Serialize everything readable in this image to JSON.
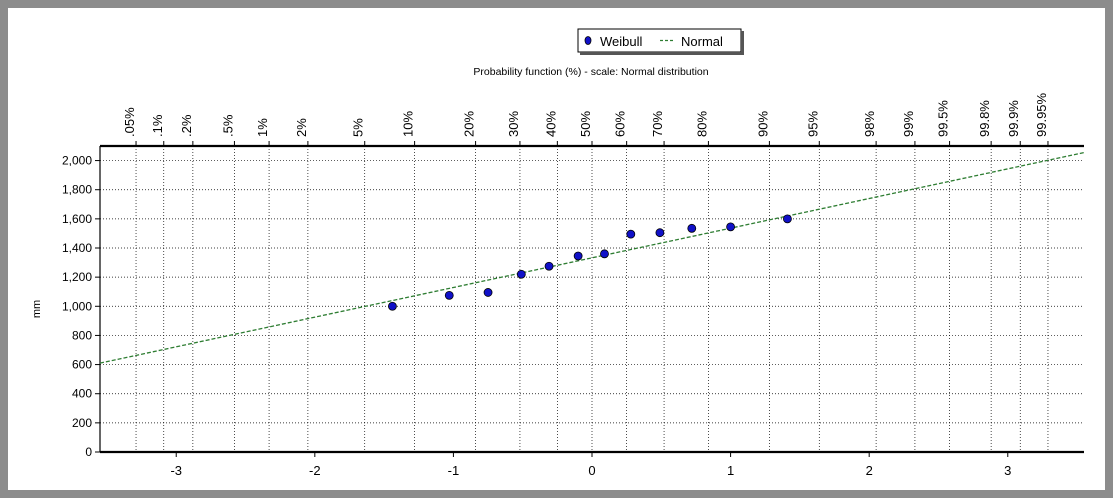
{
  "chart_data": {
    "type": "scatter",
    "title": "Probability function (%) - scale: Normal distribution",
    "ylabel": "mm",
    "xlabel": "",
    "xlim": [
      -3.55,
      3.55
    ],
    "ylim": [
      0,
      2100
    ],
    "x_ticks": [
      -3,
      -2,
      -1,
      0,
      1,
      2,
      3
    ],
    "y_ticks": [
      0,
      200,
      400,
      600,
      800,
      1000,
      1200,
      1400,
      1600,
      1800,
      2000
    ],
    "y_tick_labels": [
      "0",
      "200",
      "400",
      "600",
      "800",
      "1,000",
      "1,200",
      "1,400",
      "1,600",
      "1,800",
      "2,000"
    ],
    "top_axis": {
      "labels": [
        ".05%",
        ".1%",
        ".2%",
        ".5%",
        "1%",
        "2%",
        "5%",
        "10%",
        "20%",
        "30%",
        "40%",
        "50%",
        "60%",
        "70%",
        "80%",
        "90%",
        "95%",
        "98%",
        "99%",
        "99.5%",
        "99.8%",
        "99.9%",
        "99.95%"
      ],
      "z": [
        -3.29,
        -3.09,
        -2.88,
        -2.58,
        -2.33,
        -2.05,
        -1.64,
        -1.28,
        -0.84,
        -0.52,
        -0.25,
        0,
        0.25,
        0.52,
        0.84,
        1.28,
        1.64,
        2.05,
        2.33,
        2.58,
        2.88,
        3.09,
        3.29
      ]
    },
    "grid": true,
    "legend": {
      "placement": "top-center",
      "entries": [
        "Weibull",
        "Normal"
      ]
    },
    "series": [
      {
        "name": "Weibull",
        "marker": "circle",
        "color": "#1010c8",
        "points": [
          {
            "x": -1.44,
            "y": 1000
          },
          {
            "x": -1.03,
            "y": 1075
          },
          {
            "x": -0.75,
            "y": 1095
          },
          {
            "x": -0.51,
            "y": 1220
          },
          {
            "x": -0.31,
            "y": 1275
          },
          {
            "x": -0.1,
            "y": 1345
          },
          {
            "x": 0.09,
            "y": 1360
          },
          {
            "x": 0.28,
            "y": 1495
          },
          {
            "x": 0.49,
            "y": 1505
          },
          {
            "x": 0.72,
            "y": 1535
          },
          {
            "x": 1.0,
            "y": 1545
          },
          {
            "x": 1.41,
            "y": 1600
          }
        ]
      },
      {
        "name": "Normal",
        "style": "dashed-line",
        "color": "#2e7d32",
        "x": [
          -3.55,
          3.55
        ],
        "y": [
          610,
          2055
        ]
      }
    ]
  }
}
